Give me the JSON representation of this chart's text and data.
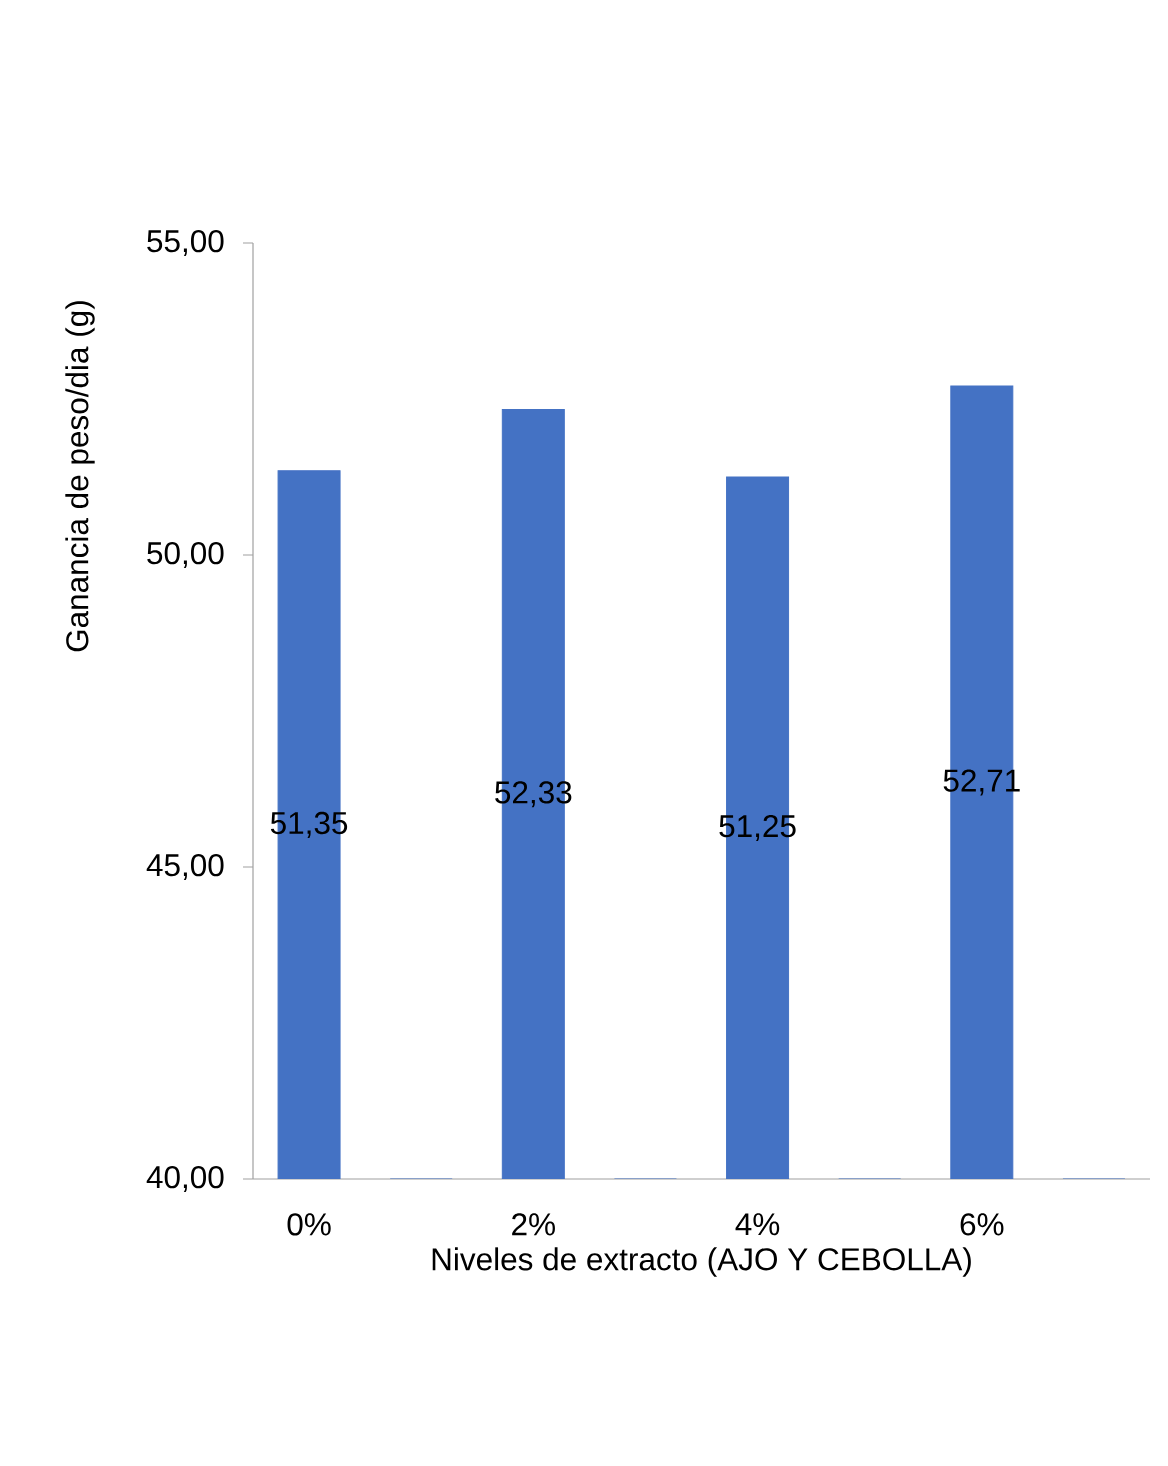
{
  "chart_data": {
    "type": "bar",
    "xlabel": "Niveles de extracto (AJO Y CEBOLLA)",
    "ylabel": "Ganancia de peso/dia (g)",
    "categories": [
      "0%",
      null,
      "2%",
      null,
      "4%",
      null,
      "6%",
      null
    ],
    "values": [
      51.35,
      40,
      52.33,
      40,
      51.25,
      40,
      52.71,
      40
    ],
    "value_labels": [
      "51,35",
      null,
      "52,33",
      null,
      "51,25",
      null,
      "52,71",
      null
    ],
    "color": "#4472c4",
    "ylim": [
      40,
      55
    ],
    "yticks": [
      {
        "value": 40,
        "label": "40,00"
      },
      {
        "value": 45,
        "label": "45,00"
      },
      {
        "value": 50,
        "label": "50,00"
      },
      {
        "value": 55,
        "label": "55,00"
      }
    ]
  }
}
